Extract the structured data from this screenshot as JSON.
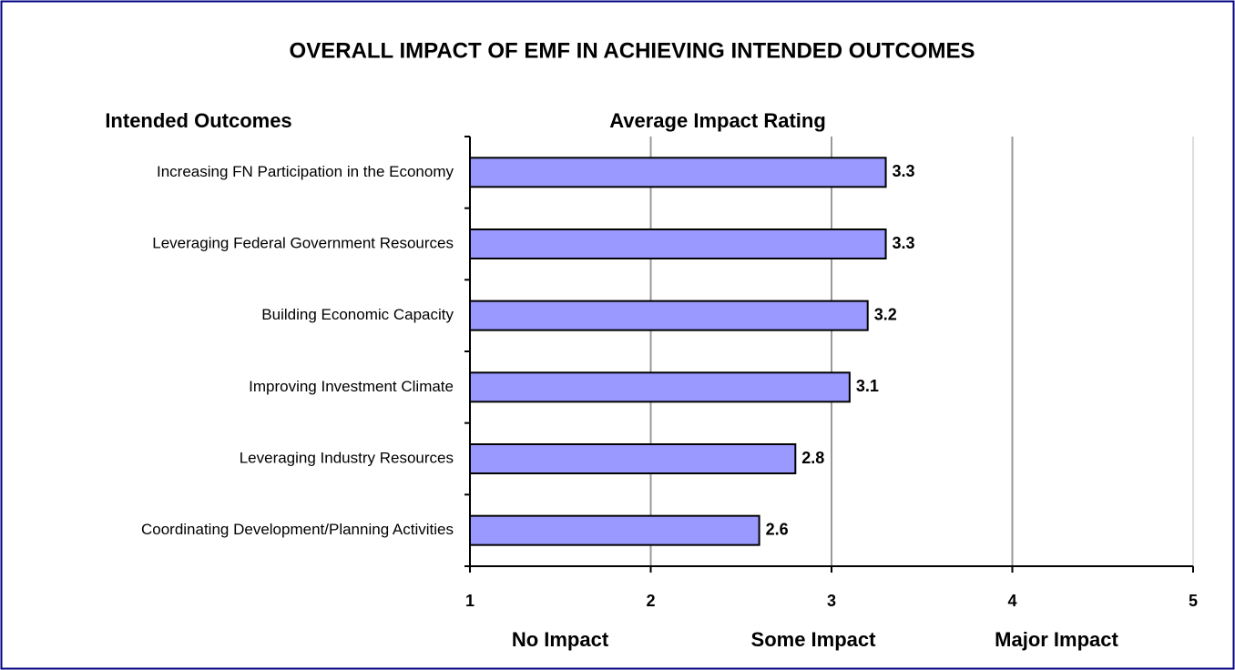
{
  "chart_data": {
    "type": "bar",
    "orientation": "horizontal",
    "title": "OVERALL IMPACT OF EMF IN ACHIEVING INTENDED OUTCOMES",
    "category_axis_label": "Intended Outcomes",
    "value_axis_label": "Average Impact Rating",
    "scale_labels": [
      "No Impact",
      "Some Impact",
      "Major Impact"
    ],
    "categories": [
      "Increasing FN Participation in the Economy",
      "Leveraging Federal Government Resources",
      "Building Economic Capacity",
      "Improving Investment Climate",
      "Leveraging Industry Resources",
      "Coordinating Development/Planning Activities"
    ],
    "values": [
      3.3,
      3.3,
      3.2,
      3.1,
      2.8,
      2.6
    ],
    "color": "#9999ff",
    "xlim": [
      1,
      5
    ],
    "xticks": [
      1,
      2,
      3,
      4,
      5
    ],
    "grid": true
  }
}
